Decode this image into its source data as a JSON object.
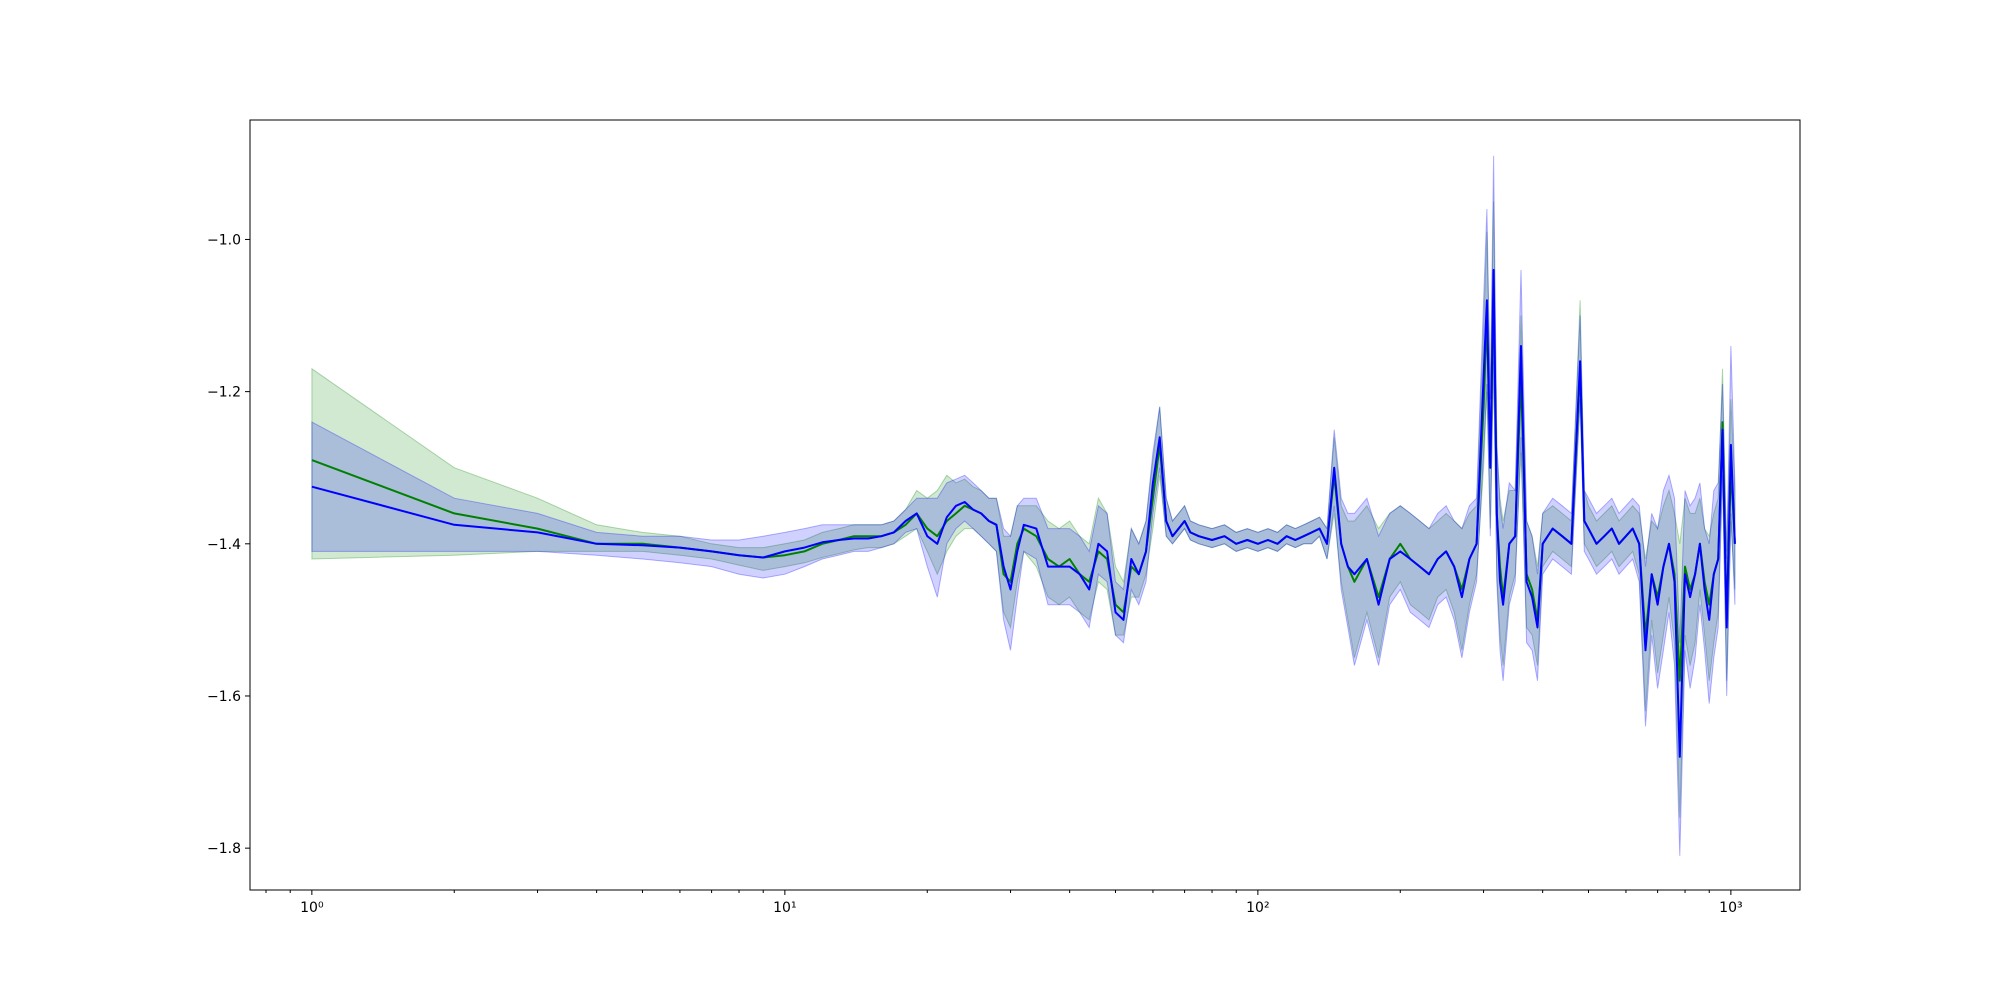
{
  "chart_data": {
    "type": "line",
    "title": "",
    "xlabel": "",
    "ylabel": "",
    "x_scale": "log",
    "xlim": [
      0.74,
      1400
    ],
    "ylim": [
      -1.855,
      -0.843
    ],
    "grid": false,
    "legend": "none",
    "x_ticks": [
      {
        "value": 1,
        "label": "10⁰"
      },
      {
        "value": 10,
        "label": "10¹"
      },
      {
        "value": 100,
        "label": "10²"
      },
      {
        "value": 1000,
        "label": "10³"
      }
    ],
    "y_ticks": [
      {
        "value": -1.0,
        "label": "−1.0"
      },
      {
        "value": -1.2,
        "label": "−1.2"
      },
      {
        "value": -1.4,
        "label": "−1.4"
      },
      {
        "value": -1.6,
        "label": "−1.6"
      },
      {
        "value": -1.8,
        "label": "−1.8"
      }
    ],
    "series": [
      {
        "color": "#008000",
        "band_color": "#008000",
        "x": [
          1,
          2,
          3,
          4,
          5,
          6,
          7,
          8,
          9,
          10,
          11,
          12,
          13,
          14,
          15,
          16,
          17,
          18,
          19,
          20,
          21,
          22,
          23,
          24,
          25,
          26,
          27,
          28,
          29,
          30,
          31,
          32,
          34,
          36,
          38,
          40,
          42,
          44,
          46,
          48,
          50,
          52,
          54,
          56,
          58,
          60,
          62,
          64,
          66,
          68,
          70,
          72,
          75,
          80,
          85,
          90,
          95,
          100,
          105,
          110,
          115,
          120,
          125,
          130,
          135,
          140,
          145,
          150,
          155,
          160,
          170,
          180,
          190,
          200,
          210,
          220,
          230,
          240,
          250,
          260,
          270,
          280,
          290,
          300,
          305,
          310,
          315,
          320,
          325,
          330,
          340,
          350,
          360,
          370,
          380,
          390,
          400,
          420,
          440,
          460,
          480,
          490,
          500,
          520,
          540,
          560,
          580,
          600,
          620,
          640,
          660,
          680,
          700,
          720,
          740,
          760,
          780,
          800,
          820,
          840,
          860,
          880,
          900,
          920,
          940,
          960,
          980,
          1000,
          1020
        ],
        "y": [
          -1.29,
          -1.36,
          -1.38,
          -1.4,
          -1.4,
          -1.405,
          -1.41,
          -1.415,
          -1.418,
          -1.415,
          -1.41,
          -1.4,
          -1.395,
          -1.39,
          -1.39,
          -1.39,
          -1.385,
          -1.375,
          -1.36,
          -1.38,
          -1.39,
          -1.37,
          -1.36,
          -1.35,
          -1.355,
          -1.36,
          -1.37,
          -1.375,
          -1.44,
          -1.45,
          -1.4,
          -1.38,
          -1.39,
          -1.42,
          -1.43,
          -1.42,
          -1.44,
          -1.45,
          -1.41,
          -1.42,
          -1.48,
          -1.49,
          -1.43,
          -1.44,
          -1.41,
          -1.34,
          -1.27,
          -1.37,
          -1.39,
          -1.38,
          -1.37,
          -1.385,
          -1.39,
          -1.395,
          -1.39,
          -1.4,
          -1.395,
          -1.4,
          -1.395,
          -1.4,
          -1.39,
          -1.395,
          -1.39,
          -1.385,
          -1.38,
          -1.4,
          -1.31,
          -1.4,
          -1.43,
          -1.45,
          -1.42,
          -1.47,
          -1.42,
          -1.4,
          -1.42,
          -1.43,
          -1.44,
          -1.42,
          -1.41,
          -1.43,
          -1.46,
          -1.42,
          -1.4,
          -1.22,
          -1.1,
          -1.3,
          -1.06,
          -1.36,
          -1.43,
          -1.47,
          -1.4,
          -1.39,
          -1.18,
          -1.44,
          -1.46,
          -1.5,
          -1.4,
          -1.38,
          -1.39,
          -1.4,
          -1.17,
          -1.37,
          -1.38,
          -1.4,
          -1.39,
          -1.38,
          -1.4,
          -1.39,
          -1.38,
          -1.4,
          -1.52,
          -1.44,
          -1.47,
          -1.43,
          -1.4,
          -1.44,
          -1.58,
          -1.43,
          -1.46,
          -1.44,
          -1.4,
          -1.45,
          -1.48,
          -1.44,
          -1.42,
          -1.24,
          -1.5,
          -1.3,
          -1.4
        ],
        "lower": [
          -1.42,
          -1.415,
          -1.41,
          -1.41,
          -1.41,
          -1.415,
          -1.42,
          -1.428,
          -1.435,
          -1.43,
          -1.425,
          -1.418,
          -1.413,
          -1.408,
          -1.405,
          -1.405,
          -1.4,
          -1.39,
          -1.38,
          -1.41,
          -1.44,
          -1.41,
          -1.39,
          -1.38,
          -1.38,
          -1.39,
          -1.4,
          -1.41,
          -1.49,
          -1.51,
          -1.45,
          -1.41,
          -1.43,
          -1.47,
          -1.48,
          -1.47,
          -1.49,
          -1.5,
          -1.45,
          -1.46,
          -1.52,
          -1.52,
          -1.47,
          -1.47,
          -1.44,
          -1.38,
          -1.31,
          -1.39,
          -1.4,
          -1.39,
          -1.38,
          -1.395,
          -1.4,
          -1.405,
          -1.4,
          -1.41,
          -1.405,
          -1.41,
          -1.405,
          -1.41,
          -1.4,
          -1.405,
          -1.4,
          -1.4,
          -1.39,
          -1.42,
          -1.36,
          -1.45,
          -1.5,
          -1.55,
          -1.49,
          -1.55,
          -1.47,
          -1.45,
          -1.48,
          -1.49,
          -1.5,
          -1.47,
          -1.46,
          -1.49,
          -1.54,
          -1.48,
          -1.44,
          -1.3,
          -1.2,
          -1.38,
          -1.16,
          -1.44,
          -1.52,
          -1.56,
          -1.47,
          -1.44,
          -1.28,
          -1.51,
          -1.52,
          -1.56,
          -1.43,
          -1.41,
          -1.42,
          -1.43,
          -1.21,
          -1.4,
          -1.41,
          -1.43,
          -1.42,
          -1.41,
          -1.43,
          -1.42,
          -1.41,
          -1.44,
          -1.62,
          -1.5,
          -1.57,
          -1.52,
          -1.47,
          -1.53,
          -1.76,
          -1.52,
          -1.56,
          -1.53,
          -1.46,
          -1.52,
          -1.58,
          -1.53,
          -1.49,
          -1.3,
          -1.58,
          -1.37,
          -1.46
        ],
        "upper": [
          -1.17,
          -1.3,
          -1.34,
          -1.375,
          -1.385,
          -1.39,
          -1.4,
          -1.405,
          -1.405,
          -1.4,
          -1.395,
          -1.385,
          -1.38,
          -1.375,
          -1.375,
          -1.375,
          -1.37,
          -1.355,
          -1.33,
          -1.34,
          -1.33,
          -1.31,
          -1.32,
          -1.315,
          -1.325,
          -1.33,
          -1.34,
          -1.34,
          -1.39,
          -1.39,
          -1.35,
          -1.35,
          -1.35,
          -1.37,
          -1.38,
          -1.37,
          -1.39,
          -1.4,
          -1.34,
          -1.36,
          -1.43,
          -1.45,
          -1.38,
          -1.4,
          -1.37,
          -1.29,
          -1.22,
          -1.34,
          -1.37,
          -1.36,
          -1.35,
          -1.37,
          -1.375,
          -1.38,
          -1.375,
          -1.385,
          -1.38,
          -1.385,
          -1.38,
          -1.385,
          -1.375,
          -1.38,
          -1.375,
          -1.37,
          -1.365,
          -1.38,
          -1.26,
          -1.35,
          -1.37,
          -1.37,
          -1.35,
          -1.38,
          -1.36,
          -1.35,
          -1.36,
          -1.37,
          -1.38,
          -1.37,
          -1.36,
          -1.37,
          -1.38,
          -1.36,
          -1.35,
          -1.12,
          -0.99,
          -1.21,
          -0.95,
          -1.27,
          -1.34,
          -1.37,
          -1.33,
          -1.33,
          -1.1,
          -1.37,
          -1.39,
          -1.43,
          -1.36,
          -1.35,
          -1.36,
          -1.37,
          -1.08,
          -1.33,
          -1.35,
          -1.37,
          -1.36,
          -1.35,
          -1.37,
          -1.36,
          -1.35,
          -1.36,
          -1.42,
          -1.37,
          -1.38,
          -1.35,
          -1.33,
          -1.36,
          -1.4,
          -1.34,
          -1.36,
          -1.36,
          -1.34,
          -1.38,
          -1.39,
          -1.36,
          -1.34,
          -1.17,
          -1.41,
          -1.21,
          -1.33
        ]
      },
      {
        "color": "#0000ff",
        "band_color": "#0000ff",
        "x": [
          1,
          2,
          3,
          4,
          5,
          6,
          7,
          8,
          9,
          10,
          11,
          12,
          13,
          14,
          15,
          16,
          17,
          18,
          19,
          20,
          21,
          22,
          23,
          24,
          25,
          26,
          27,
          28,
          29,
          30,
          31,
          32,
          34,
          36,
          38,
          40,
          42,
          44,
          46,
          48,
          50,
          52,
          54,
          56,
          58,
          60,
          62,
          64,
          66,
          68,
          70,
          72,
          75,
          80,
          85,
          90,
          95,
          100,
          105,
          110,
          115,
          120,
          125,
          130,
          135,
          140,
          145,
          150,
          155,
          160,
          170,
          180,
          190,
          200,
          210,
          220,
          230,
          240,
          250,
          260,
          270,
          280,
          290,
          300,
          305,
          310,
          315,
          320,
          325,
          330,
          340,
          350,
          360,
          370,
          380,
          390,
          400,
          420,
          440,
          460,
          480,
          490,
          500,
          520,
          540,
          560,
          580,
          600,
          620,
          640,
          660,
          680,
          700,
          720,
          740,
          760,
          780,
          800,
          820,
          840,
          860,
          880,
          900,
          920,
          940,
          960,
          980,
          1000,
          1020
        ],
        "y": [
          -1.325,
          -1.375,
          -1.385,
          -1.4,
          -1.402,
          -1.405,
          -1.41,
          -1.415,
          -1.418,
          -1.41,
          -1.405,
          -1.398,
          -1.395,
          -1.393,
          -1.393,
          -1.39,
          -1.385,
          -1.37,
          -1.36,
          -1.39,
          -1.4,
          -1.365,
          -1.35,
          -1.345,
          -1.355,
          -1.36,
          -1.37,
          -1.375,
          -1.43,
          -1.46,
          -1.41,
          -1.375,
          -1.38,
          -1.43,
          -1.43,
          -1.43,
          -1.44,
          -1.46,
          -1.4,
          -1.41,
          -1.49,
          -1.5,
          -1.42,
          -1.44,
          -1.41,
          -1.32,
          -1.26,
          -1.37,
          -1.39,
          -1.38,
          -1.37,
          -1.385,
          -1.39,
          -1.395,
          -1.39,
          -1.4,
          -1.395,
          -1.4,
          -1.395,
          -1.4,
          -1.39,
          -1.395,
          -1.39,
          -1.385,
          -1.38,
          -1.4,
          -1.3,
          -1.4,
          -1.43,
          -1.44,
          -1.42,
          -1.48,
          -1.42,
          -1.41,
          -1.42,
          -1.43,
          -1.44,
          -1.42,
          -1.41,
          -1.43,
          -1.47,
          -1.42,
          -1.4,
          -1.18,
          -1.08,
          -1.3,
          -1.04,
          -1.36,
          -1.45,
          -1.48,
          -1.4,
          -1.39,
          -1.14,
          -1.45,
          -1.47,
          -1.51,
          -1.4,
          -1.38,
          -1.39,
          -1.4,
          -1.16,
          -1.37,
          -1.38,
          -1.4,
          -1.39,
          -1.38,
          -1.4,
          -1.39,
          -1.38,
          -1.4,
          -1.54,
          -1.44,
          -1.48,
          -1.43,
          -1.4,
          -1.45,
          -1.68,
          -1.44,
          -1.47,
          -1.44,
          -1.4,
          -1.46,
          -1.5,
          -1.44,
          -1.42,
          -1.25,
          -1.51,
          -1.27,
          -1.4
        ],
        "lower": [
          -1.41,
          -1.41,
          -1.41,
          -1.415,
          -1.42,
          -1.425,
          -1.43,
          -1.44,
          -1.445,
          -1.44,
          -1.43,
          -1.42,
          -1.415,
          -1.41,
          -1.41,
          -1.405,
          -1.4,
          -1.385,
          -1.38,
          -1.43,
          -1.47,
          -1.4,
          -1.38,
          -1.37,
          -1.38,
          -1.39,
          -1.4,
          -1.41,
          -1.5,
          -1.54,
          -1.47,
          -1.41,
          -1.42,
          -1.48,
          -1.48,
          -1.48,
          -1.49,
          -1.51,
          -1.44,
          -1.45,
          -1.52,
          -1.53,
          -1.46,
          -1.48,
          -1.45,
          -1.36,
          -1.3,
          -1.39,
          -1.4,
          -1.39,
          -1.38,
          -1.395,
          -1.4,
          -1.405,
          -1.4,
          -1.41,
          -1.405,
          -1.41,
          -1.405,
          -1.41,
          -1.4,
          -1.405,
          -1.4,
          -1.4,
          -1.39,
          -1.42,
          -1.35,
          -1.46,
          -1.51,
          -1.56,
          -1.5,
          -1.56,
          -1.48,
          -1.46,
          -1.49,
          -1.5,
          -1.51,
          -1.48,
          -1.47,
          -1.5,
          -1.55,
          -1.49,
          -1.45,
          -1.28,
          -1.19,
          -1.39,
          -1.15,
          -1.45,
          -1.54,
          -1.58,
          -1.48,
          -1.45,
          -1.26,
          -1.53,
          -1.54,
          -1.58,
          -1.44,
          -1.42,
          -1.43,
          -1.44,
          -1.21,
          -1.41,
          -1.42,
          -1.44,
          -1.43,
          -1.42,
          -1.44,
          -1.43,
          -1.42,
          -1.45,
          -1.64,
          -1.52,
          -1.59,
          -1.54,
          -1.49,
          -1.56,
          -1.81,
          -1.54,
          -1.59,
          -1.55,
          -1.48,
          -1.54,
          -1.61,
          -1.55,
          -1.51,
          -1.31,
          -1.6,
          -1.36,
          -1.48
        ],
        "upper": [
          -1.24,
          -1.34,
          -1.36,
          -1.385,
          -1.39,
          -1.39,
          -1.395,
          -1.395,
          -1.39,
          -1.385,
          -1.38,
          -1.375,
          -1.375,
          -1.375,
          -1.375,
          -1.375,
          -1.37,
          -1.355,
          -1.34,
          -1.34,
          -1.34,
          -1.32,
          -1.315,
          -1.31,
          -1.32,
          -1.33,
          -1.34,
          -1.34,
          -1.38,
          -1.39,
          -1.35,
          -1.34,
          -1.34,
          -1.38,
          -1.38,
          -1.38,
          -1.39,
          -1.41,
          -1.35,
          -1.36,
          -1.45,
          -1.46,
          -1.38,
          -1.4,
          -1.37,
          -1.28,
          -1.22,
          -1.34,
          -1.37,
          -1.36,
          -1.35,
          -1.37,
          -1.375,
          -1.38,
          -1.375,
          -1.385,
          -1.38,
          -1.385,
          -1.38,
          -1.385,
          -1.375,
          -1.38,
          -1.375,
          -1.37,
          -1.365,
          -1.38,
          -1.25,
          -1.34,
          -1.36,
          -1.36,
          -1.34,
          -1.39,
          -1.36,
          -1.35,
          -1.36,
          -1.37,
          -1.38,
          -1.36,
          -1.35,
          -1.37,
          -1.38,
          -1.35,
          -1.34,
          -1.08,
          -0.96,
          -1.21,
          -0.89,
          -1.27,
          -1.35,
          -1.38,
          -1.32,
          -1.33,
          -1.04,
          -1.37,
          -1.39,
          -1.44,
          -1.36,
          -1.34,
          -1.35,
          -1.36,
          -1.1,
          -1.33,
          -1.34,
          -1.36,
          -1.35,
          -1.34,
          -1.36,
          -1.35,
          -1.34,
          -1.35,
          -1.43,
          -1.36,
          -1.38,
          -1.33,
          -1.31,
          -1.34,
          -1.53,
          -1.33,
          -1.35,
          -1.34,
          -1.32,
          -1.38,
          -1.4,
          -1.33,
          -1.32,
          -1.19,
          -1.42,
          -1.14,
          -1.32
        ]
      }
    ]
  }
}
